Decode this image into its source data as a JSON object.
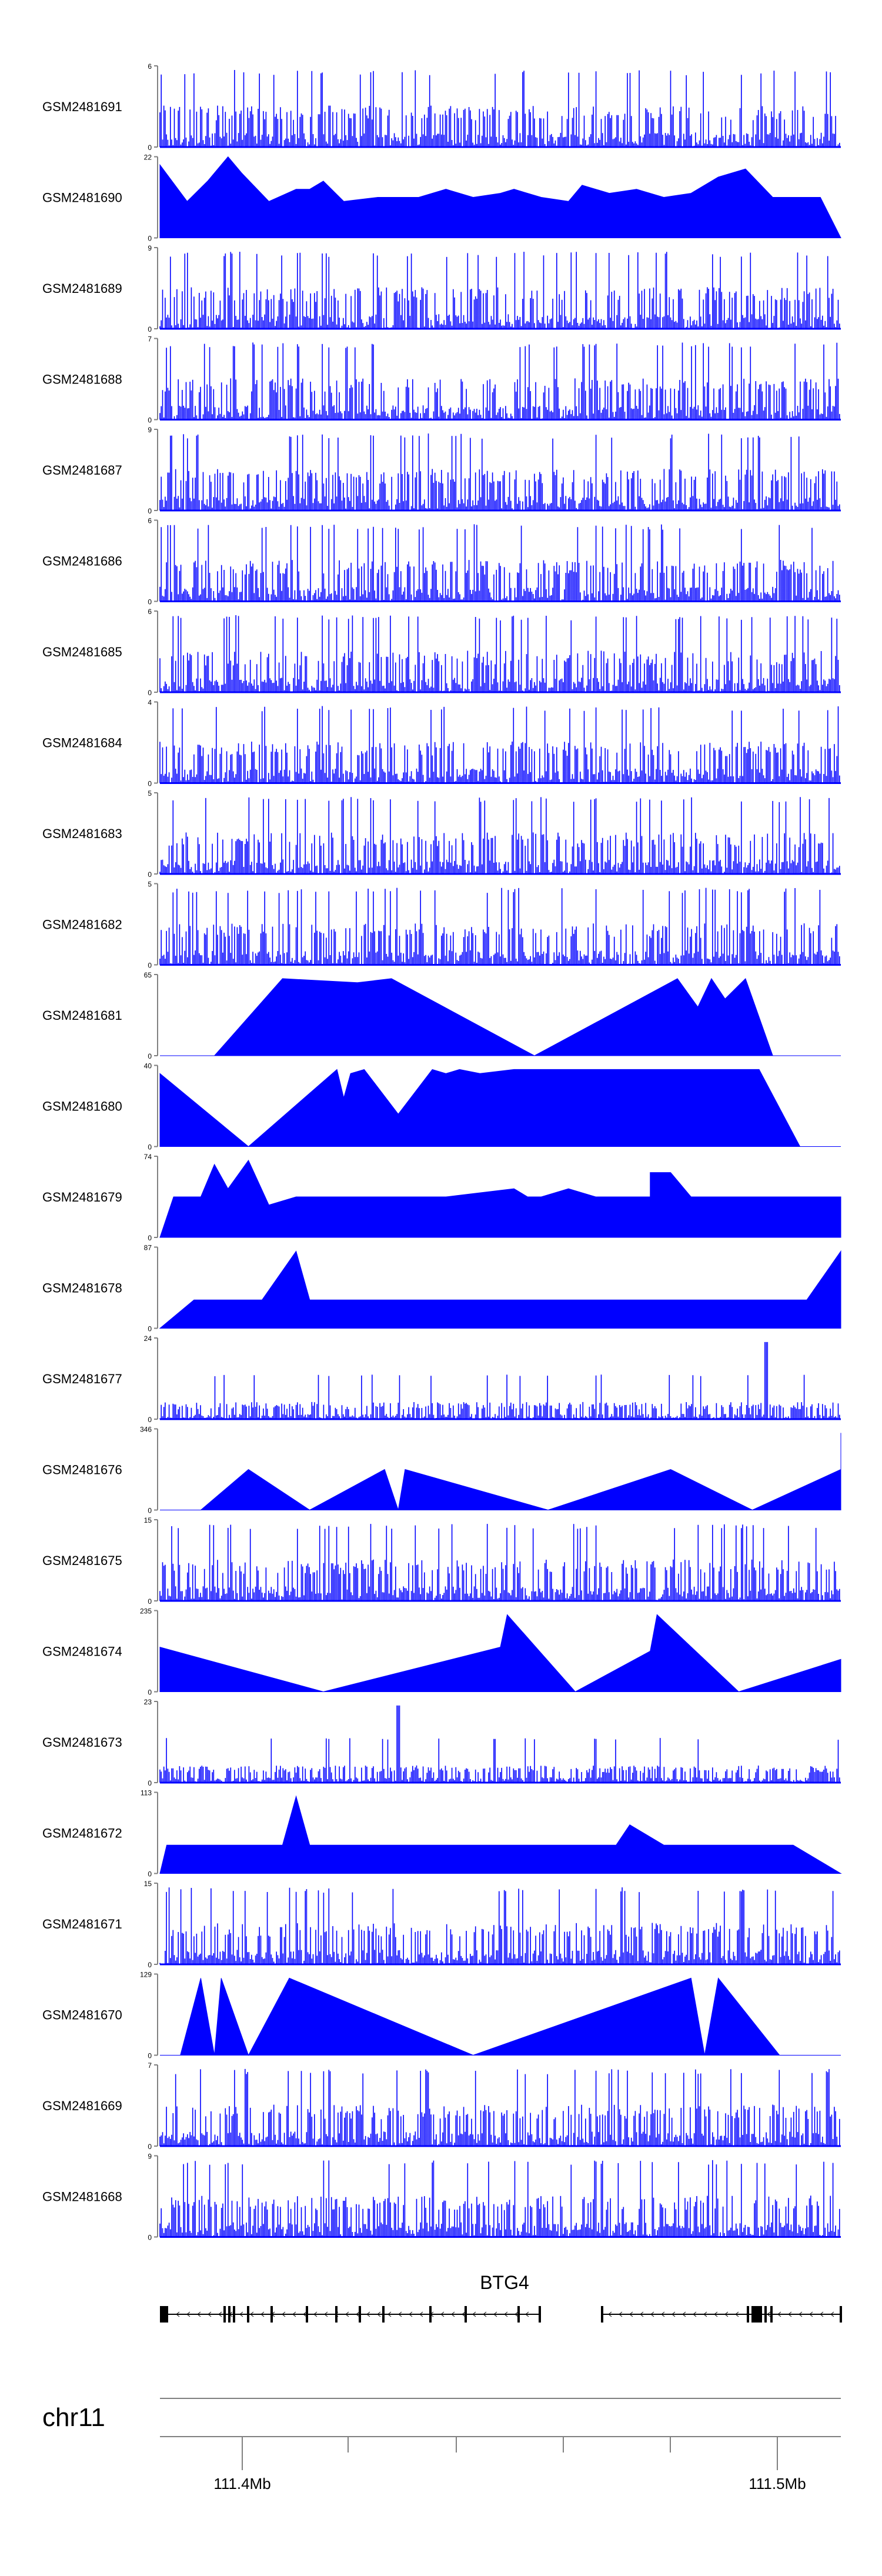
{
  "chart_data": {
    "type": "area",
    "title": "",
    "tracks": [
      {
        "name": "GSM2481691",
        "ymax": "6",
        "ymin": "0",
        "style": "dense",
        "seed": 91
      },
      {
        "name": "GSM2481690",
        "ymax": "22",
        "ymin": "0",
        "style": "triangles",
        "seed": 90,
        "peaks": [
          [
            0.0,
            0.9
          ],
          [
            0.04,
            0.45
          ],
          [
            0.07,
            0.7
          ],
          [
            0.1,
            1.0
          ],
          [
            0.12,
            0.8
          ],
          [
            0.16,
            0.45
          ],
          [
            0.2,
            0.6
          ],
          [
            0.22,
            0.6
          ],
          [
            0.24,
            0.7
          ],
          [
            0.27,
            0.45
          ],
          [
            0.32,
            0.5
          ],
          [
            0.38,
            0.5
          ],
          [
            0.42,
            0.6
          ],
          [
            0.46,
            0.5
          ],
          [
            0.5,
            0.55
          ],
          [
            0.52,
            0.6
          ],
          [
            0.56,
            0.5
          ],
          [
            0.6,
            0.45
          ],
          [
            0.62,
            0.65
          ],
          [
            0.66,
            0.55
          ],
          [
            0.7,
            0.6
          ],
          [
            0.74,
            0.5
          ],
          [
            0.78,
            0.55
          ],
          [
            0.82,
            0.75
          ],
          [
            0.86,
            0.85
          ],
          [
            0.9,
            0.5
          ],
          [
            0.94,
            0.5
          ],
          [
            0.97,
            0.5
          ]
        ]
      },
      {
        "name": "GSM2481689",
        "ymax": "9",
        "ymin": "0",
        "style": "dense",
        "seed": 89
      },
      {
        "name": "GSM2481688",
        "ymax": "7",
        "ymin": "0",
        "style": "dense",
        "seed": 88
      },
      {
        "name": "GSM2481687",
        "ymax": "9",
        "ymin": "0",
        "style": "dense",
        "seed": 87
      },
      {
        "name": "GSM2481686",
        "ymax": "6",
        "ymin": "0",
        "style": "dense",
        "seed": 86
      },
      {
        "name": "GSM2481685",
        "ymax": "6",
        "ymin": "0",
        "style": "dense",
        "seed": 85
      },
      {
        "name": "GSM2481684",
        "ymax": "4",
        "ymin": "0",
        "style": "dense",
        "seed": 84
      },
      {
        "name": "GSM2481683",
        "ymax": "5",
        "ymin": "0",
        "style": "dense",
        "seed": 83
      },
      {
        "name": "GSM2481682",
        "ymax": "5",
        "ymin": "0",
        "style": "dense",
        "seed": 82
      },
      {
        "name": "GSM2481681",
        "ymax": "65",
        "ymin": "0",
        "style": "triangles",
        "seed": 81,
        "peaks": [
          [
            0.08,
            0.0
          ],
          [
            0.18,
            0.95
          ],
          [
            0.29,
            0.9
          ],
          [
            0.34,
            0.95
          ],
          [
            0.55,
            0.0
          ],
          [
            0.76,
            0.95
          ],
          [
            0.79,
            0.6
          ],
          [
            0.81,
            0.95
          ],
          [
            0.83,
            0.7
          ],
          [
            0.86,
            0.95
          ],
          [
            0.9,
            0.0
          ]
        ]
      },
      {
        "name": "GSM2481680",
        "ymax": "40",
        "ymin": "0",
        "style": "triangles",
        "seed": 80,
        "peaks": [
          [
            0.0,
            0.9
          ],
          [
            0.13,
            0.0
          ],
          [
            0.26,
            0.95
          ],
          [
            0.27,
            0.6
          ],
          [
            0.28,
            0.9
          ],
          [
            0.3,
            0.95
          ],
          [
            0.35,
            0.4
          ],
          [
            0.4,
            0.95
          ],
          [
            0.42,
            0.9
          ],
          [
            0.44,
            0.95
          ],
          [
            0.47,
            0.9
          ],
          [
            0.52,
            0.95
          ],
          [
            0.58,
            0.95
          ],
          [
            0.68,
            0.95
          ],
          [
            0.75,
            0.95
          ],
          [
            0.82,
            0.95
          ],
          [
            0.88,
            0.95
          ],
          [
            0.94,
            0.0
          ]
        ]
      },
      {
        "name": "GSM2481679",
        "ymax": "74",
        "ymin": "0",
        "style": "triangles",
        "seed": 79,
        "peaks": [
          [
            0.02,
            0.5
          ],
          [
            0.06,
            0.5
          ],
          [
            0.08,
            0.9
          ],
          [
            0.1,
            0.6
          ],
          [
            0.13,
            0.95
          ],
          [
            0.16,
            0.4
          ],
          [
            0.2,
            0.5
          ],
          [
            0.27,
            0.5
          ],
          [
            0.34,
            0.5
          ],
          [
            0.42,
            0.5
          ],
          [
            0.52,
            0.6
          ],
          [
            0.54,
            0.5
          ],
          [
            0.56,
            0.5
          ],
          [
            0.6,
            0.6
          ],
          [
            0.64,
            0.5
          ],
          [
            0.68,
            0.5
          ],
          [
            0.72,
            0.5
          ],
          [
            0.72,
            0.8
          ],
          [
            0.75,
            0.8
          ],
          [
            0.78,
            0.5
          ],
          [
            0.82,
            0.5
          ],
          [
            0.86,
            0.5
          ],
          [
            0.9,
            0.5
          ],
          [
            0.96,
            0.5
          ],
          [
            1.0,
            0.5
          ]
        ]
      },
      {
        "name": "GSM2481678",
        "ymax": "87",
        "ymin": "0",
        "style": "triangles",
        "seed": 78,
        "peaks": [
          [
            0.05,
            0.35
          ],
          [
            0.08,
            0.35
          ],
          [
            0.11,
            0.35
          ],
          [
            0.15,
            0.35
          ],
          [
            0.2,
            0.95
          ],
          [
            0.22,
            0.35
          ],
          [
            0.25,
            0.35
          ],
          [
            0.3,
            0.35
          ],
          [
            0.34,
            0.35
          ],
          [
            0.38,
            0.35
          ],
          [
            0.43,
            0.35
          ],
          [
            0.48,
            0.35
          ],
          [
            0.52,
            0.35
          ],
          [
            0.56,
            0.35
          ],
          [
            0.6,
            0.35
          ],
          [
            0.66,
            0.35
          ],
          [
            0.7,
            0.35
          ],
          [
            0.75,
            0.35
          ],
          [
            0.8,
            0.35
          ],
          [
            0.84,
            0.35
          ],
          [
            0.9,
            0.35
          ],
          [
            0.95,
            0.35
          ],
          [
            1.0,
            0.95
          ]
        ]
      },
      {
        "name": "GSM2481677",
        "ymax": "24",
        "ymin": "0",
        "style": "sparse",
        "seed": 77,
        "spike": 0.89
      },
      {
        "name": "GSM2481676",
        "ymax": "346",
        "ymin": "0",
        "style": "triangles",
        "seed": 76,
        "peaks": [
          [
            0.06,
            0.0
          ],
          [
            0.13,
            0.5
          ],
          [
            0.22,
            0.0
          ],
          [
            0.33,
            0.5
          ],
          [
            0.35,
            0.0
          ],
          [
            0.36,
            0.5
          ],
          [
            0.57,
            0.0
          ],
          [
            0.75,
            0.5
          ],
          [
            0.87,
            0.0
          ],
          [
            1.0,
            0.5
          ],
          [
            1.0,
            0.95
          ]
        ]
      },
      {
        "name": "GSM2481675",
        "ymax": "15",
        "ymin": "0",
        "style": "dense",
        "seed": 75
      },
      {
        "name": "GSM2481674",
        "ymax": "235",
        "ymin": "0",
        "style": "triangles",
        "seed": 74,
        "peaks": [
          [
            0.0,
            0.55
          ],
          [
            0.24,
            0.0
          ],
          [
            0.5,
            0.55
          ],
          [
            0.51,
            0.95
          ],
          [
            0.61,
            0.0
          ],
          [
            0.72,
            0.5
          ],
          [
            0.73,
            0.95
          ],
          [
            0.85,
            0.0
          ],
          [
            1.0,
            0.4
          ]
        ]
      },
      {
        "name": "GSM2481673",
        "ymax": "23",
        "ymin": "0",
        "style": "sparse",
        "seed": 73,
        "spike": 0.35
      },
      {
        "name": "GSM2481672",
        "ymax": "113",
        "ymin": "0",
        "style": "triangles",
        "seed": 72,
        "peaks": [
          [
            0.01,
            0.35
          ],
          [
            0.06,
            0.35
          ],
          [
            0.12,
            0.35
          ],
          [
            0.18,
            0.35
          ],
          [
            0.2,
            0.95
          ],
          [
            0.22,
            0.35
          ],
          [
            0.26,
            0.35
          ],
          [
            0.28,
            0.35
          ],
          [
            0.31,
            0.35
          ],
          [
            0.34,
            0.35
          ],
          [
            0.38,
            0.35
          ],
          [
            0.44,
            0.35
          ],
          [
            0.5,
            0.35
          ],
          [
            0.56,
            0.35
          ],
          [
            0.6,
            0.35
          ],
          [
            0.63,
            0.35
          ],
          [
            0.67,
            0.35
          ],
          [
            0.69,
            0.6
          ],
          [
            0.74,
            0.35
          ],
          [
            0.8,
            0.35
          ],
          [
            0.86,
            0.35
          ],
          [
            0.93,
            0.35
          ]
        ]
      },
      {
        "name": "GSM2481671",
        "ymax": "15",
        "ymin": "0",
        "style": "dense",
        "seed": 71
      },
      {
        "name": "GSM2481670",
        "ymax": "129",
        "ymin": "0",
        "style": "triangles",
        "seed": 70,
        "peaks": [
          [
            0.03,
            0.0
          ],
          [
            0.06,
            0.95
          ],
          [
            0.08,
            0.0
          ],
          [
            0.09,
            0.95
          ],
          [
            0.13,
            0.0
          ],
          [
            0.19,
            0.95
          ],
          [
            0.46,
            0.0
          ],
          [
            0.78,
            0.95
          ],
          [
            0.8,
            0.0
          ],
          [
            0.82,
            0.95
          ],
          [
            0.91,
            0.0
          ]
        ]
      },
      {
        "name": "GSM2481669",
        "ymax": "7",
        "ymin": "0",
        "style": "dense",
        "seed": 69
      },
      {
        "name": "GSM2481668",
        "ymax": "9",
        "ymin": "0",
        "style": "dense",
        "seed": 68
      }
    ],
    "gene_label": "BTG4",
    "chromosome": "chr11",
    "axis_ticks": [
      "111.4Mb",
      "111.5Mb"
    ],
    "colors": {
      "signal": "#0000ff",
      "axis": "#808080",
      "gene": "#000000"
    }
  }
}
